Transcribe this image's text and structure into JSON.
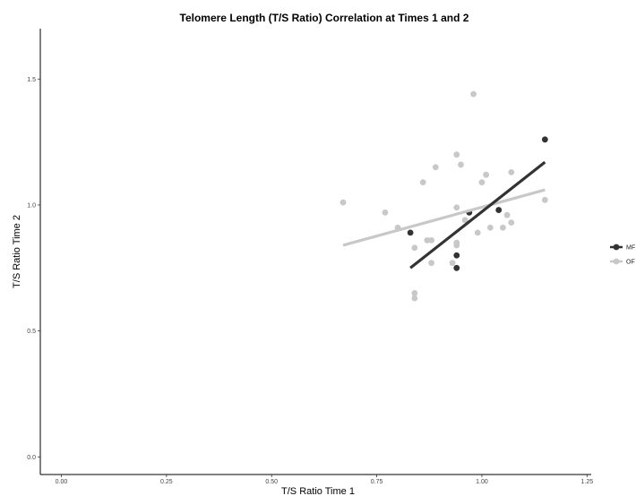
{
  "chart_data": {
    "type": "scatter",
    "title": "Telomere Length (T/S Ratio) Correlation at Times 1 and 2",
    "xlabel": "T/S Ratio Time 1",
    "ylabel": "T/S Ratio Time 2",
    "xlim": [
      -0.05,
      1.26
    ],
    "ylim": [
      -0.07,
      1.7
    ],
    "x_ticks": [
      0.0,
      0.25,
      0.5,
      0.75,
      1.0,
      1.25
    ],
    "x_tick_labels": [
      "0.00",
      "0.25",
      "0.50",
      "0.75",
      "1.00",
      "1.25"
    ],
    "y_ticks": [
      0.0,
      0.5,
      1.0,
      1.5
    ],
    "y_tick_labels": [
      "0.0",
      "0.5",
      "1.0",
      "1.5"
    ],
    "grid": false,
    "legend_position": "right",
    "series": [
      {
        "name": "MF",
        "color": "#333333",
        "points": [
          {
            "x": 0.83,
            "y": 0.89
          },
          {
            "x": 0.94,
            "y": 0.8
          },
          {
            "x": 0.94,
            "y": 0.75
          },
          {
            "x": 0.97,
            "y": 0.97
          },
          {
            "x": 1.04,
            "y": 0.98
          },
          {
            "x": 1.15,
            "y": 1.26
          }
        ],
        "fit_line": {
          "x": [
            0.83,
            1.15
          ],
          "y": [
            0.75,
            1.17
          ]
        }
      },
      {
        "name": "OF",
        "color": "#c8c8c8",
        "points": [
          {
            "x": 0.67,
            "y": 1.01
          },
          {
            "x": 0.77,
            "y": 0.97
          },
          {
            "x": 0.8,
            "y": 0.91
          },
          {
            "x": 0.84,
            "y": 0.83
          },
          {
            "x": 0.84,
            "y": 0.63
          },
          {
            "x": 0.84,
            "y": 0.65
          },
          {
            "x": 0.86,
            "y": 1.09
          },
          {
            "x": 0.87,
            "y": 0.86
          },
          {
            "x": 0.88,
            "y": 0.86
          },
          {
            "x": 0.88,
            "y": 0.77
          },
          {
            "x": 0.89,
            "y": 1.15
          },
          {
            "x": 0.93,
            "y": 0.77
          },
          {
            "x": 0.94,
            "y": 0.84
          },
          {
            "x": 0.94,
            "y": 0.85
          },
          {
            "x": 0.94,
            "y": 1.2
          },
          {
            "x": 0.94,
            "y": 0.99
          },
          {
            "x": 0.95,
            "y": 1.16
          },
          {
            "x": 0.96,
            "y": 0.94
          },
          {
            "x": 0.98,
            "y": 1.44
          },
          {
            "x": 0.99,
            "y": 0.89
          },
          {
            "x": 1.0,
            "y": 1.09
          },
          {
            "x": 1.01,
            "y": 1.12
          },
          {
            "x": 1.02,
            "y": 0.91
          },
          {
            "x": 1.05,
            "y": 0.91
          },
          {
            "x": 1.06,
            "y": 0.96
          },
          {
            "x": 1.07,
            "y": 0.93
          },
          {
            "x": 1.07,
            "y": 1.13
          },
          {
            "x": 1.15,
            "y": 1.02
          }
        ],
        "fit_line": {
          "x": [
            0.67,
            1.15
          ],
          "y": [
            0.84,
            1.06
          ]
        }
      }
    ]
  }
}
